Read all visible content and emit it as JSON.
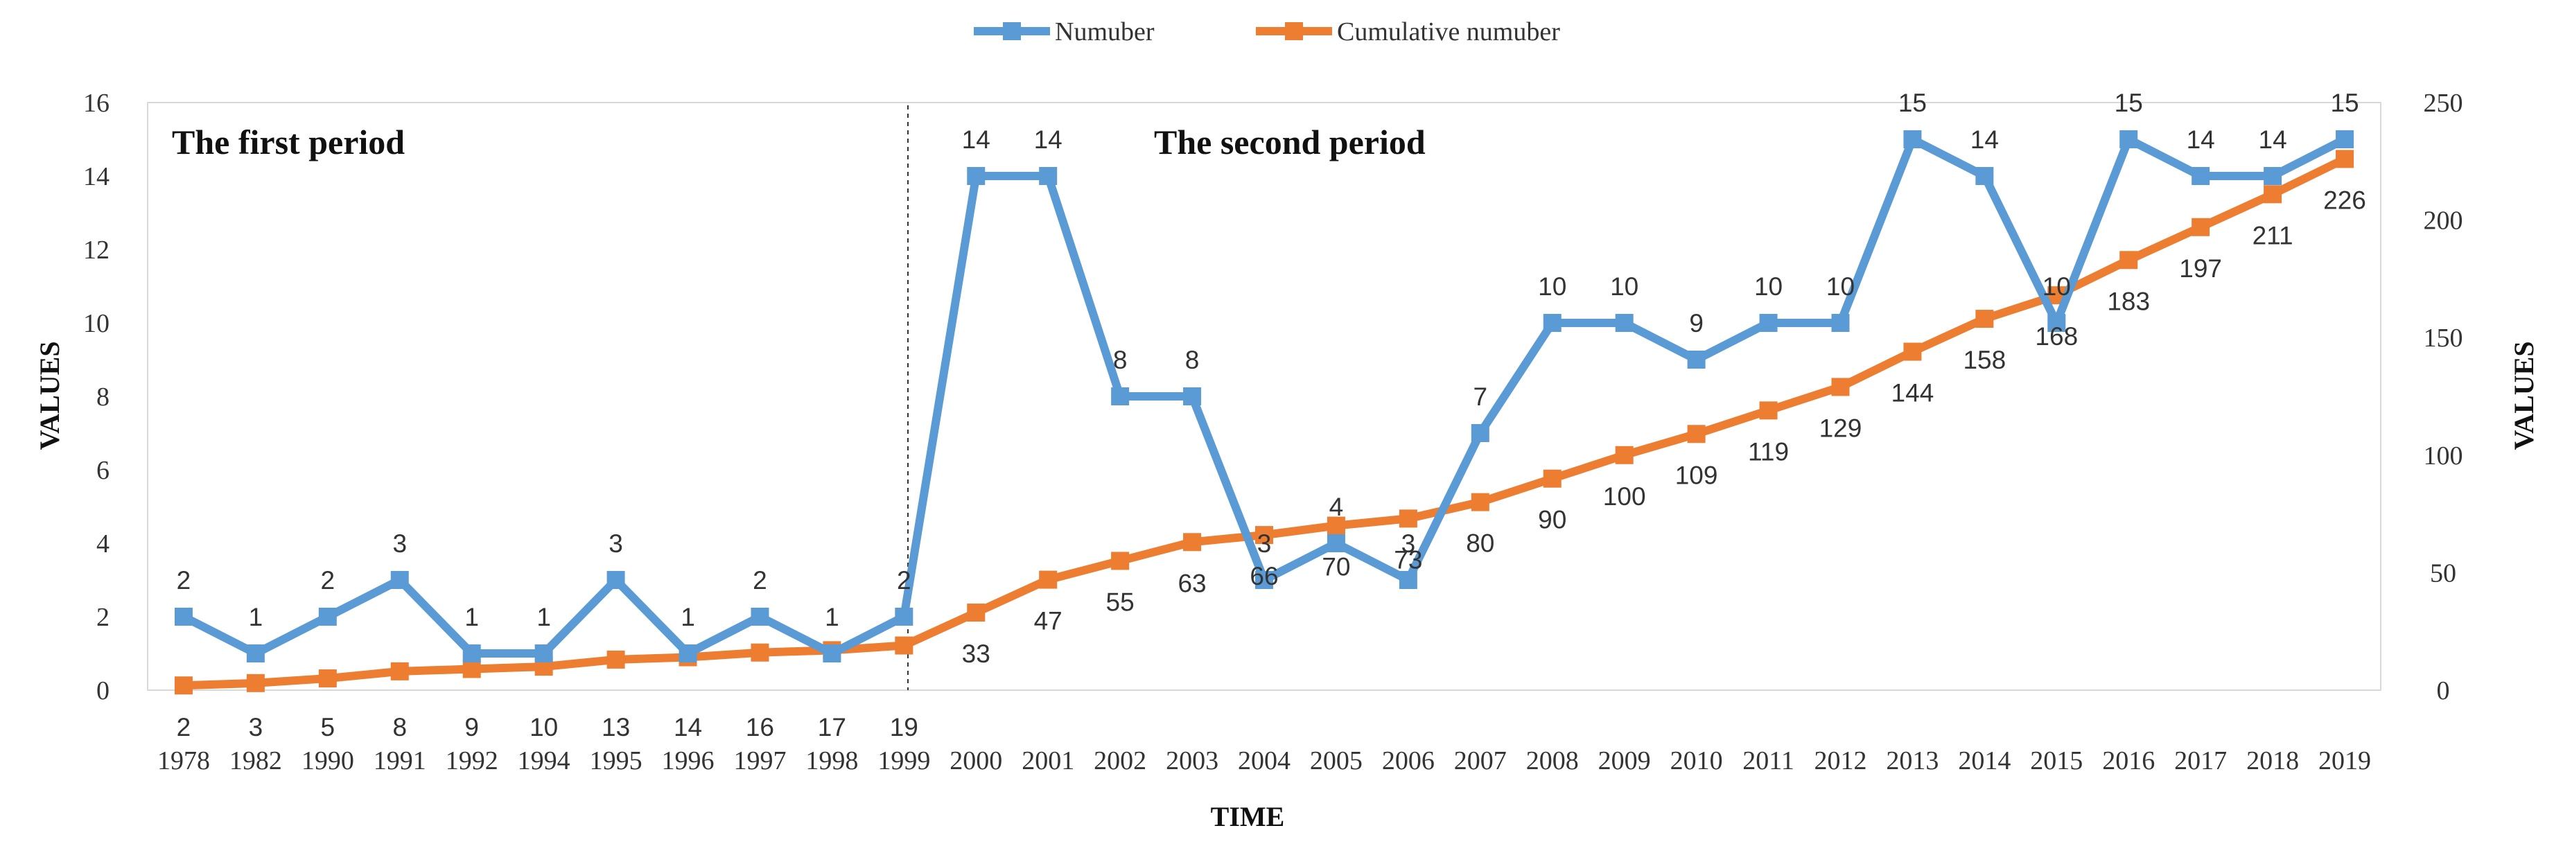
{
  "chart_data": {
    "type": "line",
    "categories": [
      "1978",
      "1982",
      "1990",
      "1991",
      "1992",
      "1994",
      "1995",
      "1996",
      "1997",
      "1998",
      "1999",
      "2000",
      "2001",
      "2002",
      "2003",
      "2004",
      "2005",
      "2006",
      "2007",
      "2008",
      "2009",
      "2010",
      "2011",
      "2012",
      "2013",
      "2014",
      "2015",
      "2016",
      "2017",
      "2018",
      "2019"
    ],
    "series": [
      {
        "name": "Numuber",
        "axis": "left",
        "color": "#5B9BD5",
        "marker": "square",
        "values": [
          2,
          1,
          2,
          3,
          1,
          1,
          3,
          1,
          2,
          1,
          2,
          14,
          14,
          8,
          8,
          3,
          4,
          3,
          7,
          10,
          10,
          9,
          10,
          10,
          15,
          14,
          10,
          15,
          14,
          14,
          15
        ]
      },
      {
        "name": "Cumulative numuber",
        "axis": "right",
        "color": "#ED7D31",
        "marker": "square",
        "values": [
          2,
          3,
          5,
          8,
          9,
          10,
          13,
          14,
          16,
          17,
          19,
          33,
          47,
          55,
          63,
          66,
          70,
          73,
          80,
          90,
          100,
          109,
          119,
          129,
          144,
          158,
          168,
          183,
          197,
          211,
          226
        ]
      }
    ],
    "left_axis": {
      "label": "VALUES",
      "min": 0,
      "max": 16,
      "ticks": [
        0,
        2,
        4,
        6,
        8,
        10,
        12,
        14,
        16
      ]
    },
    "right_axis": {
      "label": "VALUES",
      "min": 0,
      "max": 250,
      "ticks": [
        0,
        50,
        100,
        150,
        200,
        250
      ]
    },
    "xlabel": "TIME",
    "legend_position": "top-center",
    "annotations": {
      "divider_after": "1999",
      "first_period": "The first period",
      "second_period": "The second period"
    }
  }
}
